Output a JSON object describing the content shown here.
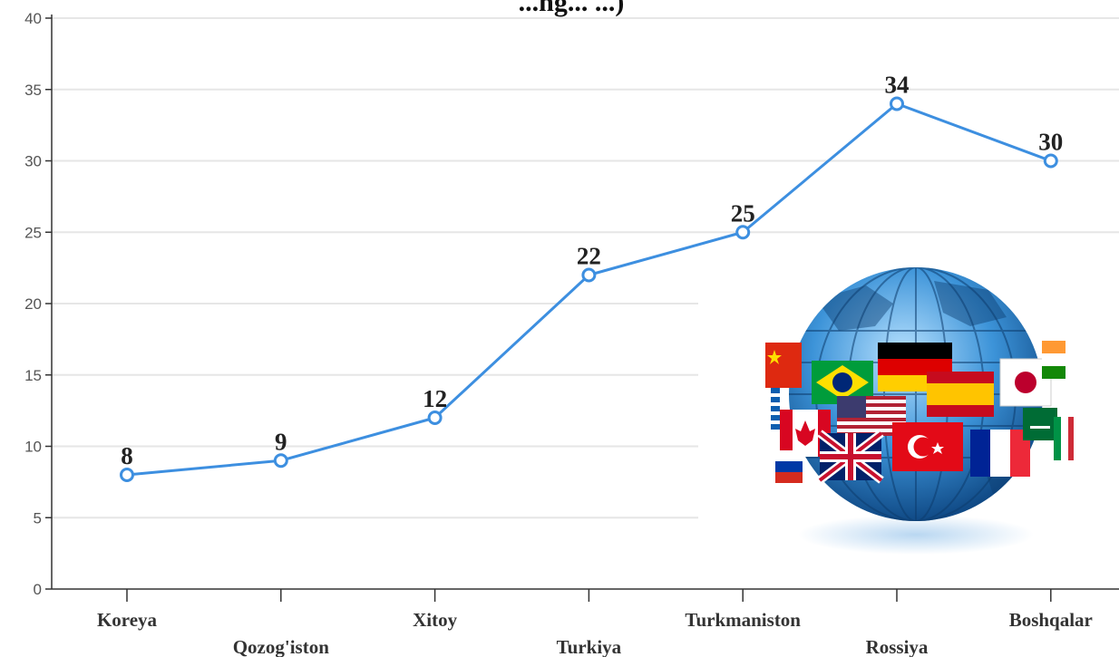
{
  "chart_data": {
    "type": "line",
    "title": "...ng... ...)",
    "categories": [
      "Koreya",
      "Qozog'iston",
      "Xitoy",
      "Turkiya",
      "Turkmaniston",
      "Rossiya",
      "Boshqalar"
    ],
    "values": [
      8,
      9,
      12,
      22,
      25,
      34,
      30
    ],
    "data_labels": [
      "8",
      "9",
      "12",
      "22",
      "25",
      "34",
      "30"
    ],
    "yticks": [
      "0",
      "5",
      "10",
      "15",
      "20",
      "25",
      "30",
      "35",
      "40"
    ],
    "ylim": [
      0,
      40
    ],
    "xlabel": "",
    "ylabel": "",
    "grid": true,
    "legend": "none",
    "line_color": "#3d8fe0",
    "marker_fill": "#ffffff",
    "decoration": "globe-with-flags-illustration"
  }
}
